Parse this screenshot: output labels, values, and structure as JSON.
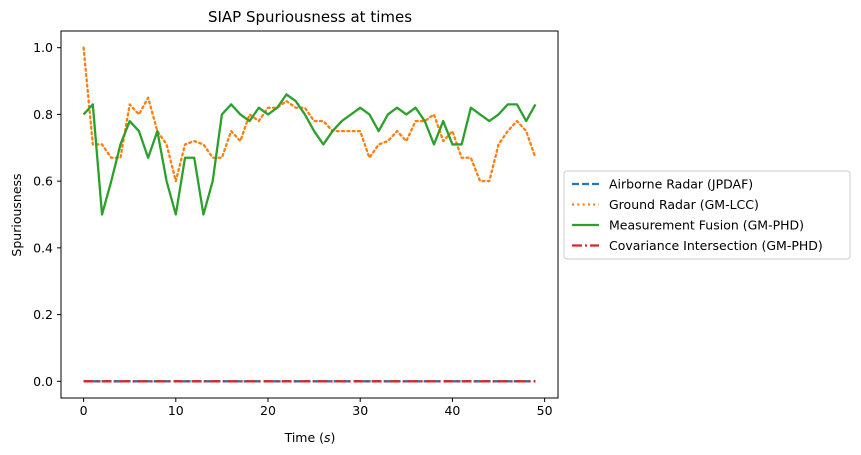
{
  "chart_data": {
    "type": "line",
    "title": "SIAP Spuriousness at times",
    "xlabel": "Time (s)",
    "xlabel_main": "Time (",
    "xlabel_unit": "s",
    "xlabel_close": ")",
    "ylabel": "Spuriousness",
    "xlim": [
      -2.45,
      51.45
    ],
    "ylim": [
      -0.05,
      1.05
    ],
    "xticks": [
      0,
      10,
      20,
      30,
      40,
      50
    ],
    "xtick_labels": [
      "0",
      "10",
      "20",
      "30",
      "40",
      "50"
    ],
    "yticks": [
      0.0,
      0.2,
      0.4,
      0.6,
      0.8,
      1.0
    ],
    "ytick_labels": [
      "0.0",
      "0.2",
      "0.4",
      "0.6",
      "0.8",
      "1.0"
    ],
    "grid": false,
    "legend_placement": "outside-right",
    "x": [
      0,
      1,
      2,
      3,
      4,
      5,
      6,
      7,
      8,
      9,
      10,
      11,
      12,
      13,
      14,
      15,
      16,
      17,
      18,
      19,
      20,
      21,
      22,
      23,
      24,
      25,
      26,
      27,
      28,
      29,
      30,
      31,
      32,
      33,
      34,
      35,
      36,
      37,
      38,
      39,
      40,
      41,
      42,
      43,
      44,
      45,
      46,
      47,
      48,
      49
    ],
    "series": [
      {
        "name": "Airborne Radar (JPDAF)",
        "color": "#1f77b4",
        "style": "dashed",
        "values": [
          0,
          0,
          0,
          0,
          0,
          0,
          0,
          0,
          0,
          0,
          0,
          0,
          0,
          0,
          0,
          0,
          0,
          0,
          0,
          0,
          0,
          0,
          0,
          0,
          0,
          0,
          0,
          0,
          0,
          0,
          0,
          0,
          0,
          0,
          0,
          0,
          0,
          0,
          0,
          0,
          0,
          0,
          0,
          0,
          0,
          0,
          0,
          0,
          0,
          0
        ]
      },
      {
        "name": "Ground Radar (GM-LCC)",
        "color": "#ff7f0e",
        "style": "dotted",
        "values": [
          1.0,
          0.71,
          0.71,
          0.67,
          0.67,
          0.83,
          0.8,
          0.85,
          0.75,
          0.71,
          0.6,
          0.71,
          0.72,
          0.71,
          0.67,
          0.67,
          0.75,
          0.72,
          0.8,
          0.78,
          0.82,
          0.82,
          0.84,
          0.82,
          0.82,
          0.78,
          0.78,
          0.75,
          0.75,
          0.75,
          0.75,
          0.67,
          0.71,
          0.72,
          0.75,
          0.72,
          0.78,
          0.78,
          0.8,
          0.72,
          0.75,
          0.67,
          0.67,
          0.6,
          0.6,
          0.71,
          0.75,
          0.78,
          0.75,
          0.67
        ]
      },
      {
        "name": "Measurement Fusion (GM-PHD)",
        "color": "#2ca02c",
        "style": "solid",
        "values": [
          0.8,
          0.83,
          0.5,
          0.6,
          0.71,
          0.78,
          0.75,
          0.67,
          0.75,
          0.6,
          0.5,
          0.67,
          0.67,
          0.5,
          0.6,
          0.8,
          0.83,
          0.8,
          0.78,
          0.82,
          0.8,
          0.82,
          0.86,
          0.84,
          0.8,
          0.75,
          0.71,
          0.75,
          0.78,
          0.8,
          0.82,
          0.8,
          0.75,
          0.8,
          0.82,
          0.8,
          0.82,
          0.78,
          0.71,
          0.78,
          0.71,
          0.71,
          0.82,
          0.8,
          0.78,
          0.8,
          0.83,
          0.83,
          0.78,
          0.83
        ]
      },
      {
        "name": "Covariance Intersection (GM-PHD)",
        "color": "#d62728",
        "style": "dashdot",
        "values": [
          0,
          0,
          0,
          0,
          0,
          0,
          0,
          0,
          0,
          0,
          0,
          0,
          0,
          0,
          0,
          0,
          0,
          0,
          0,
          0,
          0,
          0,
          0,
          0,
          0,
          0,
          0,
          0,
          0,
          0,
          0,
          0,
          0,
          0,
          0,
          0,
          0,
          0,
          0,
          0,
          0,
          0,
          0,
          0,
          0,
          0,
          0,
          0,
          0,
          0
        ]
      }
    ]
  }
}
